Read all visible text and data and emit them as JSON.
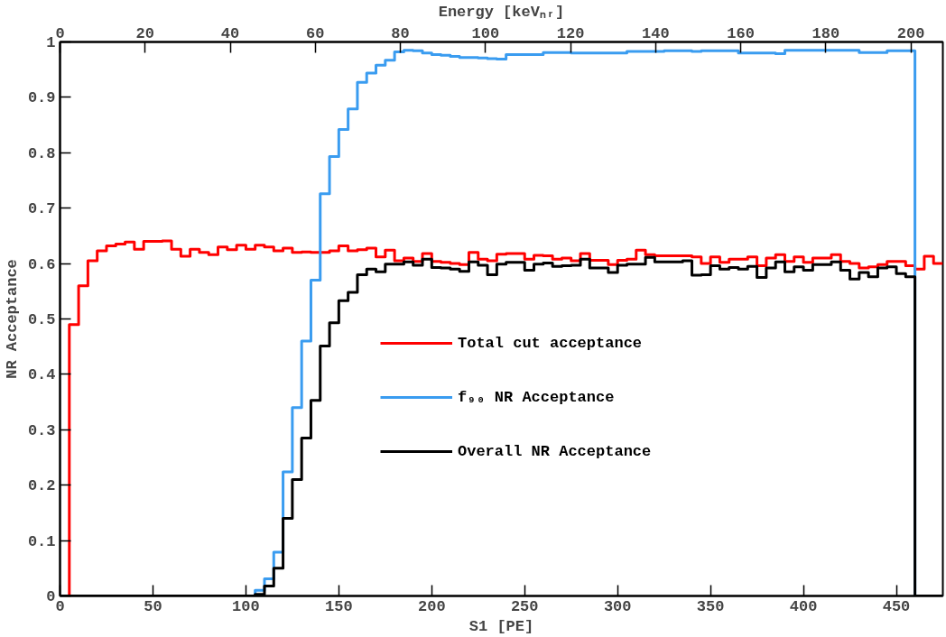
{
  "chart_data": {
    "type": "histogram",
    "xlabel": "S1 [PE]",
    "ylabel": "NR Acceptance",
    "x2label": "Energy [keVₙᵣ]",
    "bins": [
      0,
      5,
      10,
      15,
      20,
      25,
      30,
      35,
      40,
      45,
      50,
      55,
      60,
      65,
      70,
      75,
      80,
      85,
      90,
      95,
      100,
      105,
      110,
      115,
      120,
      125,
      130,
      135,
      140,
      145,
      150,
      155,
      160,
      165,
      170,
      175,
      180,
      185,
      190,
      195,
      200,
      205,
      210,
      215,
      220,
      225,
      230,
      235,
      240,
      245,
      250,
      255,
      260,
      265,
      270,
      275,
      280,
      285,
      290,
      295,
      300,
      305,
      310,
      315,
      320,
      325,
      330,
      335,
      340,
      345,
      350,
      355,
      360,
      365,
      370,
      375,
      380,
      385,
      390,
      395,
      400,
      405,
      410,
      415,
      420,
      425,
      430,
      435,
      440,
      445,
      450,
      455,
      460,
      465,
      470,
      475
    ],
    "series": [
      {
        "name": "Total cut acceptance",
        "color": "#ff0000",
        "values": [
          0,
          0.49,
          0.56,
          0.605,
          0.623,
          0.632,
          0.635,
          0.639,
          0.626,
          0.64,
          0.64,
          0.641,
          0.626,
          0.613,
          0.626,
          0.62,
          0.616,
          0.63,
          0.625,
          0.633,
          0.626,
          0.633,
          0.63,
          0.623,
          0.628,
          0.62,
          0.621,
          0.62,
          0.62,
          0.623,
          0.632,
          0.623,
          0.625,
          0.628,
          0.612,
          0.624,
          0.605,
          0.61,
          0.604,
          0.618,
          0.604,
          0.602,
          0.6,
          0.598,
          0.62,
          0.608,
          0.605,
          0.617,
          0.618,
          0.618,
          0.608,
          0.615,
          0.614,
          0.608,
          0.61,
          0.605,
          0.618,
          0.606,
          0.606,
          0.598,
          0.606,
          0.608,
          0.624,
          0.616,
          0.614,
          0.614,
          0.614,
          0.614,
          0.612,
          0.6,
          0.612,
          0.602,
          0.608,
          0.608,
          0.612,
          0.596,
          0.61,
          0.616,
          0.604,
          0.612,
          0.602,
          0.61,
          0.61,
          0.616,
          0.604,
          0.6,
          0.592,
          0.594,
          0.598,
          0.604,
          0.604,
          0.596,
          0.59,
          0.613,
          0.6
        ]
      },
      {
        "name": "f₉₀ NR Acceptance",
        "color": "#3a9cf0",
        "values": [
          0,
          0,
          0,
          0,
          0,
          0,
          0,
          0,
          0,
          0,
          0,
          0,
          0,
          0,
          0,
          0,
          0,
          0,
          0,
          0,
          0,
          0.01,
          0.031,
          0.079,
          0.224,
          0.34,
          0.46,
          0.57,
          0.726,
          0.793,
          0.842,
          0.879,
          0.927,
          0.944,
          0.958,
          0.967,
          0.982,
          0.985,
          0.984,
          0.98,
          0.977,
          0.976,
          0.974,
          0.972,
          0.972,
          0.971,
          0.97,
          0.969,
          0.977,
          0.977,
          0.977,
          0.977,
          0.981,
          0.981,
          0.981,
          0.98,
          0.98,
          0.98,
          0.98,
          0.98,
          0.98,
          0.983,
          0.983,
          0.983,
          0.983,
          0.984,
          0.984,
          0.984,
          0.983,
          0.984,
          0.984,
          0.984,
          0.984,
          0.98,
          0.98,
          0.98,
          0.98,
          0.979,
          0.985,
          0.985,
          0.985,
          0.985,
          0.985,
          0.985,
          0.985,
          0.985,
          0.981,
          0.981,
          0.981,
          0.984,
          0.984,
          0.984,
          0,
          0,
          0
        ]
      },
      {
        "name": "Overall NR Acceptance",
        "color": "#000000",
        "values": [
          0,
          0,
          0,
          0,
          0,
          0,
          0,
          0,
          0,
          0,
          0,
          0,
          0,
          0,
          0,
          0,
          0,
          0,
          0,
          0,
          0,
          0.003,
          0.018,
          0.05,
          0.14,
          0.21,
          0.285,
          0.353,
          0.451,
          0.493,
          0.533,
          0.548,
          0.58,
          0.59,
          0.585,
          0.599,
          0.599,
          0.603,
          0.597,
          0.608,
          0.593,
          0.592,
          0.59,
          0.586,
          0.603,
          0.597,
          0.58,
          0.599,
          0.602,
          0.602,
          0.588,
          0.599,
          0.601,
          0.595,
          0.596,
          0.597,
          0.608,
          0.592,
          0.592,
          0.584,
          0.597,
          0.599,
          0.599,
          0.611,
          0.603,
          0.603,
          0.603,
          0.605,
          0.579,
          0.58,
          0.596,
          0.59,
          0.593,
          0.59,
          0.595,
          0.575,
          0.592,
          0.603,
          0.585,
          0.594,
          0.588,
          0.598,
          0.598,
          0.603,
          0.588,
          0.572,
          0.584,
          0.576,
          0.592,
          0.594,
          0.582,
          0.576,
          0,
          0,
          0
        ]
      }
    ],
    "xlim": [
      0,
      475
    ],
    "ylim": [
      0,
      1
    ],
    "xticks": [
      0,
      50,
      100,
      150,
      200,
      250,
      300,
      350,
      400,
      450
    ],
    "yticks": [
      0,
      0.1,
      0.2,
      0.3,
      0.4,
      0.5,
      0.6,
      0.7,
      0.8,
      0.9,
      1
    ],
    "x2lim": [
      0,
      207.5
    ],
    "x2ticks": [
      0,
      20,
      40,
      60,
      80,
      100,
      120,
      140,
      160,
      180,
      200
    ],
    "grid": false,
    "legend": "right"
  }
}
